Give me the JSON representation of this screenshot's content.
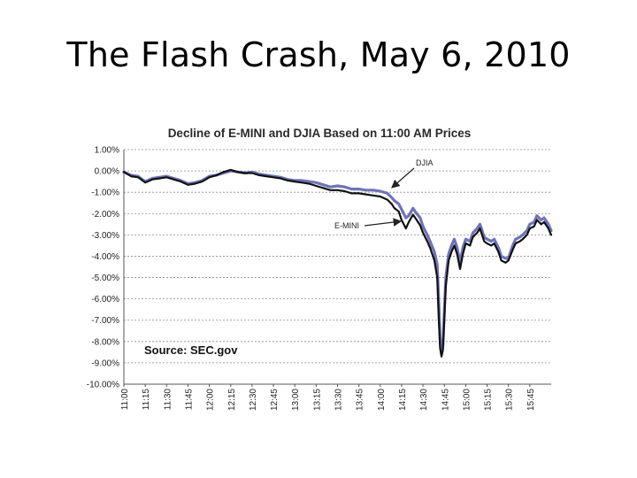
{
  "slide": {
    "title": "The Flash Crash, May 6, 2010"
  },
  "chart_data": {
    "type": "line",
    "title": "Decline of E-MINI and DJIA Based on 11:00 AM Prices",
    "xlabel": "",
    "ylabel": "",
    "ylim": [
      -10,
      1
    ],
    "x_ticks": [
      "11:00",
      "11:15",
      "11:30",
      "11:45",
      "12:00",
      "12:15",
      "12:30",
      "12:45",
      "13:00",
      "13:15",
      "13:30",
      "13:45",
      "14:00",
      "14:15",
      "14:30",
      "14:45",
      "15:00",
      "15:15",
      "15:30",
      "15:45"
    ],
    "y_ticks": [
      1,
      0,
      -1,
      -2,
      -3,
      -4,
      -5,
      -6,
      -7,
      -8,
      -9,
      -10
    ],
    "y_tick_labels": [
      "1.00%",
      "0.00%",
      "-1.00%",
      "-2.00%",
      "-3.00%",
      "-4.00%",
      "-5.00%",
      "-6.00%",
      "-7.00%",
      "-8.00%",
      "-9.00%",
      "-10.00%"
    ],
    "grid": "horizontal dashed",
    "annotations": [
      {
        "text": "DJIA",
        "target_series": "DJIA"
      },
      {
        "text": "E-MINI",
        "target_series": "E-MINI"
      }
    ],
    "source_note": "Source: SEC.gov",
    "series": [
      {
        "name": "DJIA",
        "color": "#6f74b8",
        "points": [
          [
            "11:00",
            -0.05
          ],
          [
            "11:05",
            -0.2
          ],
          [
            "11:10",
            -0.25
          ],
          [
            "11:15",
            -0.5
          ],
          [
            "11:20",
            -0.35
          ],
          [
            "11:25",
            -0.3
          ],
          [
            "11:30",
            -0.25
          ],
          [
            "11:35",
            -0.35
          ],
          [
            "11:40",
            -0.45
          ],
          [
            "11:45",
            -0.6
          ],
          [
            "11:50",
            -0.55
          ],
          [
            "11:55",
            -0.45
          ],
          [
            "12:00",
            -0.25
          ],
          [
            "12:05",
            -0.2
          ],
          [
            "12:10",
            -0.1
          ],
          [
            "12:15",
            0.0
          ],
          [
            "12:20",
            -0.05
          ],
          [
            "12:25",
            -0.1
          ],
          [
            "12:30",
            -0.05
          ],
          [
            "12:35",
            -0.15
          ],
          [
            "12:40",
            -0.2
          ],
          [
            "12:45",
            -0.25
          ],
          [
            "12:50",
            -0.3
          ],
          [
            "12:55",
            -0.4
          ],
          [
            "13:00",
            -0.45
          ],
          [
            "13:05",
            -0.45
          ],
          [
            "13:10",
            -0.5
          ],
          [
            "13:15",
            -0.55
          ],
          [
            "13:20",
            -0.65
          ],
          [
            "13:25",
            -0.75
          ],
          [
            "13:30",
            -0.7
          ],
          [
            "13:35",
            -0.75
          ],
          [
            "13:40",
            -0.85
          ],
          [
            "13:45",
            -0.85
          ],
          [
            "13:50",
            -0.9
          ],
          [
            "13:55",
            -0.9
          ],
          [
            "14:00",
            -0.95
          ],
          [
            "14:05",
            -1.05
          ],
          [
            "14:08",
            -1.25
          ],
          [
            "14:10",
            -1.4
          ],
          [
            "14:13",
            -1.55
          ],
          [
            "14:15",
            -1.8
          ],
          [
            "14:18",
            -2.2
          ],
          [
            "14:20",
            -2.1
          ],
          [
            "14:23",
            -1.75
          ],
          [
            "14:25",
            -1.95
          ],
          [
            "14:28",
            -2.2
          ],
          [
            "14:30",
            -2.6
          ],
          [
            "14:33",
            -3.0
          ],
          [
            "14:35",
            -3.3
          ],
          [
            "14:38",
            -3.8
          ],
          [
            "14:40",
            -4.4
          ],
          [
            "14:41",
            -6.0
          ],
          [
            "14:42",
            -7.8
          ],
          [
            "14:43",
            -8.6
          ],
          [
            "14:44",
            -8.2
          ],
          [
            "14:45",
            -6.5
          ],
          [
            "14:46",
            -5.0
          ],
          [
            "14:48",
            -3.9
          ],
          [
            "14:50",
            -3.5
          ],
          [
            "14:52",
            -3.2
          ],
          [
            "14:54",
            -3.6
          ],
          [
            "14:56",
            -4.3
          ],
          [
            "14:58",
            -3.6
          ],
          [
            "15:00",
            -3.2
          ],
          [
            "15:03",
            -3.3
          ],
          [
            "15:05",
            -2.9
          ],
          [
            "15:08",
            -2.7
          ],
          [
            "15:10",
            -2.5
          ],
          [
            "15:13",
            -3.1
          ],
          [
            "15:15",
            -3.2
          ],
          [
            "15:18",
            -3.3
          ],
          [
            "15:20",
            -3.2
          ],
          [
            "15:23",
            -3.6
          ],
          [
            "15:25",
            -4.0
          ],
          [
            "15:28",
            -4.1
          ],
          [
            "15:30",
            -4.1
          ],
          [
            "15:33",
            -3.5
          ],
          [
            "15:35",
            -3.2
          ],
          [
            "15:38",
            -3.1
          ],
          [
            "15:40",
            -3.0
          ],
          [
            "15:43",
            -2.8
          ],
          [
            "15:45",
            -2.5
          ],
          [
            "15:48",
            -2.4
          ],
          [
            "15:50",
            -2.1
          ],
          [
            "15:53",
            -2.3
          ],
          [
            "15:55",
            -2.2
          ],
          [
            "15:58",
            -2.5
          ],
          [
            "16:00",
            -2.8
          ]
        ]
      },
      {
        "name": "E-MINI",
        "color": "#111111",
        "points": [
          [
            "11:00",
            -0.05
          ],
          [
            "11:05",
            -0.25
          ],
          [
            "11:10",
            -0.3
          ],
          [
            "11:15",
            -0.55
          ],
          [
            "11:20",
            -0.4
          ],
          [
            "11:25",
            -0.35
          ],
          [
            "11:30",
            -0.3
          ],
          [
            "11:35",
            -0.4
          ],
          [
            "11:40",
            -0.5
          ],
          [
            "11:45",
            -0.65
          ],
          [
            "11:50",
            -0.6
          ],
          [
            "11:55",
            -0.5
          ],
          [
            "12:00",
            -0.3
          ],
          [
            "12:05",
            -0.2
          ],
          [
            "12:10",
            -0.05
          ],
          [
            "12:15",
            0.05
          ],
          [
            "12:20",
            -0.05
          ],
          [
            "12:25",
            -0.1
          ],
          [
            "12:30",
            -0.1
          ],
          [
            "12:35",
            -0.2
          ],
          [
            "12:40",
            -0.25
          ],
          [
            "12:45",
            -0.3
          ],
          [
            "12:50",
            -0.35
          ],
          [
            "12:55",
            -0.45
          ],
          [
            "13:00",
            -0.5
          ],
          [
            "13:05",
            -0.55
          ],
          [
            "13:10",
            -0.6
          ],
          [
            "13:15",
            -0.7
          ],
          [
            "13:20",
            -0.8
          ],
          [
            "13:25",
            -0.9
          ],
          [
            "13:30",
            -0.9
          ],
          [
            "13:35",
            -0.95
          ],
          [
            "13:40",
            -1.05
          ],
          [
            "13:45",
            -1.05
          ],
          [
            "13:50",
            -1.1
          ],
          [
            "13:55",
            -1.15
          ],
          [
            "14:00",
            -1.2
          ],
          [
            "14:05",
            -1.35
          ],
          [
            "14:08",
            -1.55
          ],
          [
            "14:10",
            -1.75
          ],
          [
            "14:13",
            -1.9
          ],
          [
            "14:15",
            -2.3
          ],
          [
            "14:18",
            -2.7
          ],
          [
            "14:20",
            -2.4
          ],
          [
            "14:23",
            -2.05
          ],
          [
            "14:25",
            -2.25
          ],
          [
            "14:28",
            -2.55
          ],
          [
            "14:30",
            -2.9
          ],
          [
            "14:33",
            -3.3
          ],
          [
            "14:35",
            -3.6
          ],
          [
            "14:38",
            -4.2
          ],
          [
            "14:40",
            -5.0
          ],
          [
            "14:41",
            -6.8
          ],
          [
            "14:42",
            -8.3
          ],
          [
            "14:43",
            -8.7
          ],
          [
            "14:44",
            -8.4
          ],
          [
            "14:45",
            -6.9
          ],
          [
            "14:46",
            -5.4
          ],
          [
            "14:48",
            -4.2
          ],
          [
            "14:50",
            -3.8
          ],
          [
            "14:52",
            -3.5
          ],
          [
            "14:54",
            -3.9
          ],
          [
            "14:56",
            -4.6
          ],
          [
            "14:58",
            -3.9
          ],
          [
            "15:00",
            -3.4
          ],
          [
            "15:03",
            -3.5
          ],
          [
            "15:05",
            -3.1
          ],
          [
            "15:08",
            -2.9
          ],
          [
            "15:10",
            -2.7
          ],
          [
            "15:13",
            -3.3
          ],
          [
            "15:15",
            -3.4
          ],
          [
            "15:18",
            -3.5
          ],
          [
            "15:20",
            -3.4
          ],
          [
            "15:23",
            -3.8
          ],
          [
            "15:25",
            -4.2
          ],
          [
            "15:28",
            -4.3
          ],
          [
            "15:30",
            -4.2
          ],
          [
            "15:33",
            -3.7
          ],
          [
            "15:35",
            -3.4
          ],
          [
            "15:38",
            -3.3
          ],
          [
            "15:40",
            -3.2
          ],
          [
            "15:43",
            -3.0
          ],
          [
            "15:45",
            -2.7
          ],
          [
            "15:48",
            -2.6
          ],
          [
            "15:50",
            -2.3
          ],
          [
            "15:53",
            -2.5
          ],
          [
            "15:55",
            -2.4
          ],
          [
            "15:58",
            -2.7
          ],
          [
            "16:00",
            -3.0
          ]
        ]
      }
    ]
  }
}
